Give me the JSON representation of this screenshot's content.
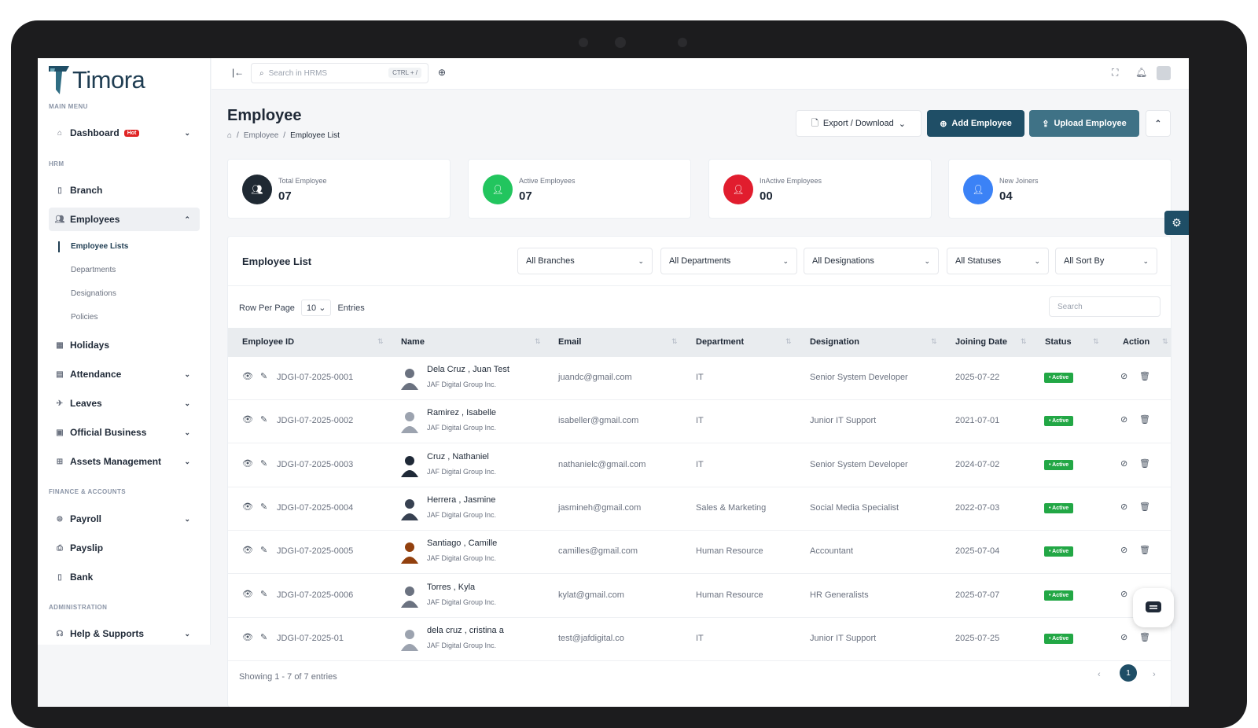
{
  "app": {
    "name": "Timora"
  },
  "topbar": {
    "search_placeholder": "Search in HRMS",
    "shortcut": "CTRL + /"
  },
  "sidebar": {
    "main_menu": "MAIN MENU",
    "dashboard": "Dashboard",
    "hot_badge": "Hot",
    "hrm": "HRM",
    "branch": "Branch",
    "employees": "Employees",
    "sub": [
      "Employee Lists",
      "Departments",
      "Designations",
      "Policies"
    ],
    "holidays": "Holidays",
    "attendance": "Attendance",
    "leaves": "Leaves",
    "official_business": "Official Business",
    "assets": "Assets Management",
    "finance": "FINANCE & ACCOUNTS",
    "payroll": "Payroll",
    "payslip": "Payslip",
    "bank": "Bank",
    "admin": "ADMINISTRATION",
    "help": "Help & Supports"
  },
  "page": {
    "title": "Employee",
    "breadcrumb": [
      "Employee",
      "Employee List"
    ],
    "export_label": "Export / Download",
    "add_label": "Add Employee",
    "upload_label": "Upload Employee"
  },
  "stats": [
    {
      "label": "Total Employee",
      "value": "07",
      "color": "#1f2933"
    },
    {
      "label": "Active Employees",
      "value": "07",
      "color": "#22c55e"
    },
    {
      "label": "InActive Employees",
      "value": "00",
      "color": "#e11d2e"
    },
    {
      "label": "New Joiners",
      "value": "04",
      "color": "#3b82f6"
    }
  ],
  "list": {
    "title": "Employee List",
    "filters": [
      "All Branches",
      "All Departments",
      "All Designations",
      "All Statuses",
      "All Sort By"
    ],
    "row_per_page_label": "Row Per Page",
    "row_per_page_value": "10",
    "entries_label": "Entries",
    "search_placeholder": "Search",
    "columns": [
      "Employee ID",
      "Name",
      "Email",
      "Department",
      "Designation",
      "Joining Date",
      "Status",
      "Action"
    ],
    "rows": [
      {
        "id": "JDGI-07-2025-0001",
        "name": "Dela Cruz , Juan Test",
        "company": "JAF Digital Group Inc.",
        "email": "juandc@gmail.com",
        "department": "IT",
        "designation": "Senior System Developer",
        "joined": "2025-07-22",
        "status": "Active"
      },
      {
        "id": "JDGI-07-2025-0002",
        "name": "Ramirez , Isabelle",
        "company": "JAF Digital Group Inc.",
        "email": "isabeller@gmail.com",
        "department": "IT",
        "designation": "Junior IT Support",
        "joined": "2021-07-01",
        "status": "Active"
      },
      {
        "id": "JDGI-07-2025-0003",
        "name": "Cruz , Nathaniel",
        "company": "JAF Digital Group Inc.",
        "email": "nathanielc@gmail.com",
        "department": "IT",
        "designation": "Senior System Developer",
        "joined": "2024-07-02",
        "status": "Active"
      },
      {
        "id": "JDGI-07-2025-0004",
        "name": "Herrera , Jasmine",
        "company": "JAF Digital Group Inc.",
        "email": "jasmineh@gmail.com",
        "department": "Sales & Marketing",
        "designation": "Social Media Specialist",
        "joined": "2022-07-03",
        "status": "Active"
      },
      {
        "id": "JDGI-07-2025-0005",
        "name": "Santiago , Camille",
        "company": "JAF Digital Group Inc.",
        "email": "camilles@gmail.com",
        "department": "Human Resource",
        "designation": "Accountant",
        "joined": "2025-07-04",
        "status": "Active"
      },
      {
        "id": "JDGI-07-2025-0006",
        "name": "Torres , Kyla",
        "company": "JAF Digital Group Inc.",
        "email": "kylat@gmail.com",
        "department": "Human Resource",
        "designation": "HR Generalists",
        "joined": "2025-07-07",
        "status": "Active"
      },
      {
        "id": "JDGI-07-2025-01",
        "name": "dela cruz , cristina a",
        "company": "JAF Digital Group Inc.",
        "email": "test@jafdigital.co",
        "department": "IT",
        "designation": "Junior IT Support",
        "joined": "2025-07-25",
        "status": "Active"
      }
    ],
    "footer": "Showing 1 - 7 of 7 entries",
    "current_page": "1"
  }
}
